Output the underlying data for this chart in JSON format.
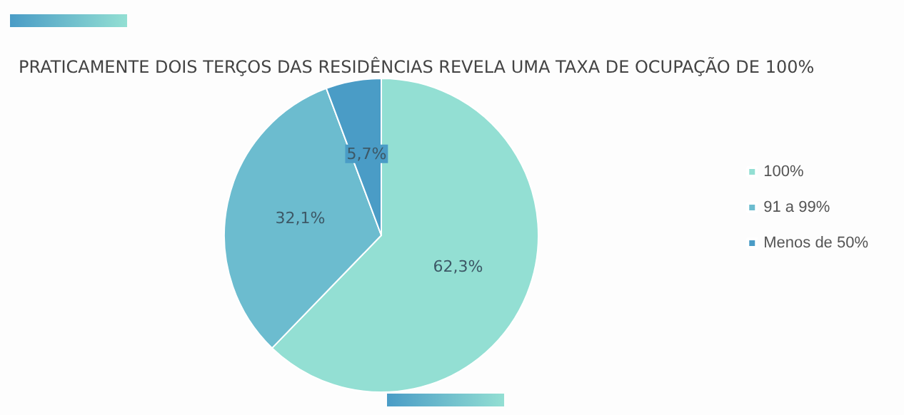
{
  "chart_data": {
    "type": "pie",
    "title": "PRATICAMENTE DOIS TERÇOS DAS RESIDÊNCIAS REVELA UMA TAXA DE OCUPAÇÃO DE 100%",
    "categories": [
      "100%",
      "91 a 99%",
      "Menos de 50%"
    ],
    "values": [
      62.3,
      32.1,
      5.7
    ],
    "value_labels": [
      "62,3%",
      "32,1%",
      "5,7%"
    ],
    "colors": [
      "#93dfd3",
      "#6cbccf",
      "#4a9cc6"
    ],
    "legend": "right"
  }
}
